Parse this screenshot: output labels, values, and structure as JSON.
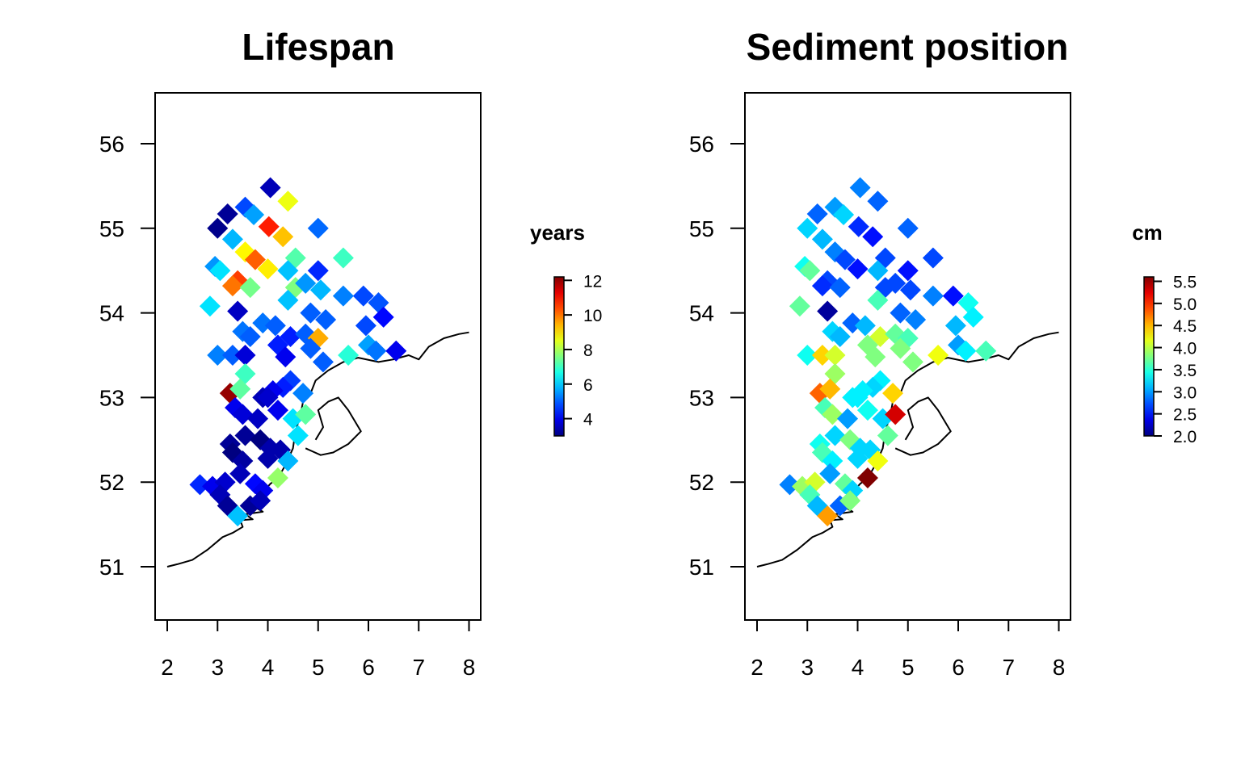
{
  "chart_data": [
    {
      "type": "scatter",
      "title": "Lifespan",
      "xlabel": "",
      "ylabel": "",
      "xlim": [
        2,
        8
      ],
      "ylim": [
        50.4,
        56.6
      ],
      "x_ticks": [
        "2",
        "3",
        "4",
        "5",
        "6",
        "7",
        "8"
      ],
      "y_ticks": [
        "51",
        "52",
        "53",
        "54",
        "55",
        "56"
      ],
      "legend": {
        "title": "years",
        "range": [
          3,
          12.2
        ],
        "ticks": [
          "4",
          "6",
          "8",
          "10",
          "12"
        ],
        "placement": "right"
      },
      "points": [
        [
          4.05,
          55.48,
          3.5
        ],
        [
          4.4,
          55.32,
          8.6
        ],
        [
          3.55,
          55.25,
          4.8
        ],
        [
          3.72,
          55.16,
          5.6
        ],
        [
          3.2,
          55.17,
          3.2
        ],
        [
          3.0,
          55.0,
          3.1
        ],
        [
          4.02,
          55.02,
          10.8
        ],
        [
          4.3,
          54.9,
          9.3
        ],
        [
          3.3,
          54.87,
          5.8
        ],
        [
          5.0,
          55.0,
          5.1
        ],
        [
          3.55,
          54.72,
          8.8
        ],
        [
          3.75,
          54.63,
          10.2
        ],
        [
          2.95,
          54.55,
          5.5
        ],
        [
          3.05,
          54.5,
          6.2
        ],
        [
          4.0,
          54.52,
          8.9
        ],
        [
          4.55,
          54.65,
          7.2
        ],
        [
          5.5,
          54.65,
          7.0
        ],
        [
          4.4,
          54.5,
          5.9
        ],
        [
          5.0,
          54.5,
          4.5
        ],
        [
          3.4,
          54.38,
          10.5
        ],
        [
          3.3,
          54.32,
          10.0
        ],
        [
          3.65,
          54.3,
          7.5
        ],
        [
          4.55,
          54.3,
          7.6
        ],
        [
          4.75,
          54.35,
          5.5
        ],
        [
          5.05,
          54.27,
          5.8
        ],
        [
          4.4,
          54.15,
          5.9
        ],
        [
          5.5,
          54.2,
          5.3
        ],
        [
          5.9,
          54.2,
          4.8
        ],
        [
          6.2,
          54.12,
          4.9
        ],
        [
          2.85,
          54.08,
          6.2
        ],
        [
          3.4,
          54.02,
          3.6
        ],
        [
          4.85,
          54.0,
          5.0
        ],
        [
          5.15,
          53.92,
          5.0
        ],
        [
          6.3,
          53.95,
          4.2
        ],
        [
          3.9,
          53.88,
          5.2
        ],
        [
          4.15,
          53.85,
          5.0
        ],
        [
          5.95,
          53.85,
          4.8
        ],
        [
          3.5,
          53.78,
          5.2
        ],
        [
          3.65,
          53.72,
          5.0
        ],
        [
          4.45,
          53.72,
          4.4
        ],
        [
          4.75,
          53.75,
          5.0
        ],
        [
          5.0,
          53.7,
          9.5
        ],
        [
          4.2,
          53.62,
          4.4
        ],
        [
          4.85,
          53.58,
          5.0
        ],
        [
          6.0,
          53.62,
          5.6
        ],
        [
          6.15,
          53.55,
          5.2
        ],
        [
          6.55,
          53.55,
          4.0
        ],
        [
          5.6,
          53.5,
          6.8
        ],
        [
          3.0,
          53.5,
          5.3
        ],
        [
          3.3,
          53.5,
          5.0
        ],
        [
          3.55,
          53.5,
          3.8
        ],
        [
          4.35,
          53.48,
          4.0
        ],
        [
          5.1,
          53.42,
          5.0
        ],
        [
          3.55,
          53.28,
          7.0
        ],
        [
          4.45,
          53.2,
          4.7
        ],
        [
          4.3,
          53.12,
          4.4
        ],
        [
          4.1,
          53.08,
          4.0
        ],
        [
          4.7,
          53.05,
          5.3
        ],
        [
          3.25,
          53.05,
          12.0
        ],
        [
          3.45,
          53.1,
          7.3
        ],
        [
          3.9,
          53.0,
          3.5
        ],
        [
          4.0,
          53.0,
          3.7
        ],
        [
          3.35,
          52.88,
          4.0
        ],
        [
          3.5,
          52.8,
          3.8
        ],
        [
          3.8,
          52.75,
          3.6
        ],
        [
          4.2,
          52.85,
          4.0
        ],
        [
          4.5,
          52.75,
          6.2
        ],
        [
          4.75,
          52.8,
          7.3
        ],
        [
          4.6,
          52.55,
          6.2
        ],
        [
          3.55,
          52.55,
          3.2
        ],
        [
          3.85,
          52.5,
          3.0
        ],
        [
          3.25,
          52.45,
          3.2
        ],
        [
          4.05,
          52.4,
          3.4
        ],
        [
          4.25,
          52.38,
          3.4
        ],
        [
          3.3,
          52.35,
          3.0
        ],
        [
          3.5,
          52.25,
          3.3
        ],
        [
          4.0,
          52.28,
          3.4
        ],
        [
          4.4,
          52.25,
          5.8
        ],
        [
          3.45,
          52.1,
          3.5
        ],
        [
          4.2,
          52.05,
          7.8
        ],
        [
          2.65,
          51.97,
          4.5
        ],
        [
          2.9,
          51.95,
          4.0
        ],
        [
          3.15,
          52.0,
          3.7
        ],
        [
          3.75,
          51.98,
          4.2
        ],
        [
          3.9,
          51.9,
          4.0
        ],
        [
          3.05,
          51.85,
          3.5
        ],
        [
          3.2,
          51.72,
          3.2
        ],
        [
          3.65,
          51.72,
          3.2
        ],
        [
          3.85,
          51.78,
          3.5
        ],
        [
          3.4,
          51.6,
          5.9
        ]
      ]
    },
    {
      "type": "scatter",
      "title": "Sediment position",
      "xlabel": "",
      "ylabel": "",
      "xlim": [
        2,
        8
      ],
      "ylim": [
        50.4,
        56.6
      ],
      "x_ticks": [
        "2",
        "3",
        "4",
        "5",
        "6",
        "7",
        "8"
      ],
      "y_ticks": [
        "51",
        "52",
        "53",
        "54",
        "55",
        "56"
      ],
      "legend": {
        "title": "cm",
        "range": [
          2.0,
          5.6
        ],
        "ticks": [
          "2.0",
          "2.5",
          "3.0",
          "3.5",
          "4.0",
          "4.5",
          "5.0",
          "5.5"
        ],
        "placement": "right"
      },
      "points": [
        [
          4.05,
          55.48,
          2.9
        ],
        [
          4.4,
          55.32,
          2.8
        ],
        [
          3.55,
          55.25,
          3.0
        ],
        [
          3.72,
          55.16,
          3.2
        ],
        [
          3.2,
          55.17,
          2.8
        ],
        [
          3.0,
          55.0,
          3.2
        ],
        [
          4.02,
          55.02,
          2.6
        ],
        [
          4.3,
          54.9,
          2.5
        ],
        [
          3.3,
          54.87,
          3.1
        ],
        [
          5.0,
          55.0,
          2.8
        ],
        [
          3.55,
          54.72,
          2.9
        ],
        [
          3.75,
          54.63,
          2.7
        ],
        [
          2.95,
          54.55,
          3.4
        ],
        [
          3.05,
          54.5,
          3.7
        ],
        [
          4.0,
          54.52,
          2.5
        ],
        [
          4.55,
          54.65,
          2.7
        ],
        [
          5.5,
          54.65,
          2.7
        ],
        [
          4.4,
          54.5,
          3.1
        ],
        [
          5.0,
          54.5,
          2.5
        ],
        [
          3.4,
          54.38,
          2.7
        ],
        [
          3.3,
          54.32,
          2.6
        ],
        [
          3.65,
          54.3,
          2.8
        ],
        [
          4.55,
          54.3,
          2.7
        ],
        [
          4.75,
          54.35,
          2.7
        ],
        [
          5.05,
          54.27,
          2.7
        ],
        [
          4.4,
          54.15,
          3.6
        ],
        [
          5.5,
          54.2,
          2.9
        ],
        [
          5.9,
          54.2,
          2.5
        ],
        [
          6.2,
          54.12,
          3.4
        ],
        [
          2.85,
          54.08,
          3.7
        ],
        [
          3.4,
          54.02,
          2.1
        ],
        [
          4.85,
          54.0,
          2.8
        ],
        [
          5.15,
          53.92,
          2.9
        ],
        [
          6.3,
          53.95,
          3.3
        ],
        [
          3.9,
          53.88,
          2.8
        ],
        [
          4.15,
          53.85,
          3.1
        ],
        [
          5.95,
          53.85,
          3.1
        ],
        [
          3.5,
          53.78,
          3.2
        ],
        [
          3.65,
          53.72,
          3.1
        ],
        [
          4.45,
          53.72,
          4.1
        ],
        [
          4.75,
          53.75,
          3.7
        ],
        [
          5.0,
          53.7,
          3.6
        ],
        [
          4.2,
          53.62,
          3.8
        ],
        [
          4.85,
          53.58,
          3.8
        ],
        [
          6.0,
          53.62,
          3.0
        ],
        [
          6.15,
          53.55,
          3.3
        ],
        [
          6.55,
          53.55,
          3.6
        ],
        [
          5.6,
          53.5,
          4.2
        ],
        [
          3.0,
          53.5,
          3.4
        ],
        [
          3.3,
          53.5,
          4.4
        ],
        [
          3.55,
          53.5,
          4.1
        ],
        [
          4.35,
          53.48,
          3.8
        ],
        [
          5.1,
          53.42,
          3.8
        ],
        [
          3.55,
          53.28,
          3.9
        ],
        [
          4.45,
          53.2,
          3.3
        ],
        [
          4.3,
          53.12,
          3.2
        ],
        [
          4.1,
          53.08,
          3.3
        ],
        [
          4.7,
          53.05,
          4.4
        ],
        [
          3.25,
          53.05,
          4.8
        ],
        [
          3.45,
          53.1,
          4.5
        ],
        [
          3.9,
          53.0,
          3.3
        ],
        [
          4.0,
          53.0,
          3.3
        ],
        [
          3.35,
          52.88,
          3.6
        ],
        [
          3.5,
          52.8,
          3.9
        ],
        [
          3.8,
          52.75,
          3.0
        ],
        [
          4.2,
          52.85,
          3.4
        ],
        [
          4.5,
          52.75,
          3.2
        ],
        [
          4.75,
          52.8,
          5.3
        ],
        [
          4.6,
          52.55,
          3.7
        ],
        [
          3.55,
          52.55,
          3.2
        ],
        [
          3.85,
          52.5,
          3.8
        ],
        [
          3.25,
          52.45,
          3.4
        ],
        [
          4.05,
          52.4,
          3.2
        ],
        [
          4.25,
          52.38,
          3.2
        ],
        [
          3.3,
          52.35,
          3.6
        ],
        [
          3.5,
          52.25,
          3.3
        ],
        [
          4.0,
          52.28,
          3.2
        ],
        [
          4.4,
          52.25,
          4.2
        ],
        [
          3.45,
          52.1,
          3.0
        ],
        [
          4.2,
          52.05,
          5.6
        ],
        [
          2.65,
          51.97,
          2.9
        ],
        [
          2.9,
          51.95,
          3.9
        ],
        [
          3.15,
          52.0,
          4.1
        ],
        [
          3.75,
          51.98,
          3.7
        ],
        [
          3.9,
          51.9,
          3.2
        ],
        [
          3.05,
          51.85,
          3.6
        ],
        [
          3.2,
          51.72,
          3.1
        ],
        [
          3.65,
          51.72,
          2.8
        ],
        [
          3.85,
          51.78,
          3.8
        ],
        [
          3.4,
          51.6,
          4.6
        ]
      ]
    }
  ]
}
